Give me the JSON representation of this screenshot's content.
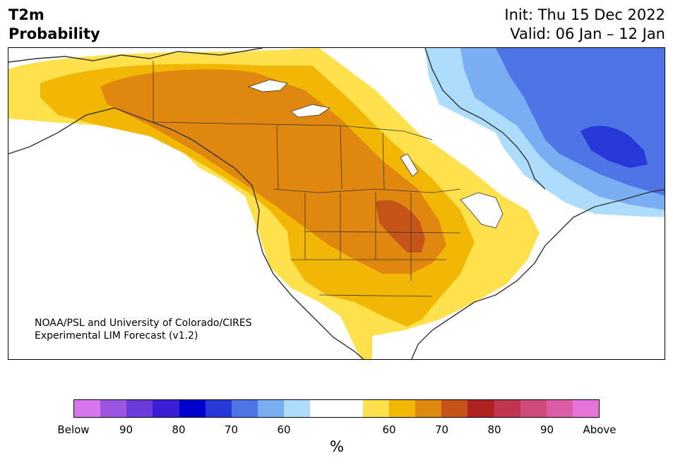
{
  "header": {
    "title_line1": "T2m",
    "title_line2": "Probability",
    "init_text": "Init: Thu 15 Dec 2022",
    "valid_text": "Valid: 06 Jan – 12 Jan"
  },
  "credit": {
    "line1": "NOAA/PSL and University of Colorado/CIRES",
    "line2": "Experimental LIM Forecast (v1.2)"
  },
  "colorbar": {
    "unit": "%",
    "colors": [
      "#d675ec",
      "#9b55e2",
      "#6b3adb",
      "#3a1ed5",
      "#0000cc",
      "#2638d8",
      "#4e74e6",
      "#79aef2",
      "#aedcfd",
      "#ffffff",
      "#ffffff",
      "#ffe14d",
      "#f2b705",
      "#df870e",
      "#c65419",
      "#b02222",
      "#c23550",
      "#cf4b7c",
      "#dc5da6",
      "#e673d8"
    ],
    "ticks": [
      {
        "label": "Below",
        "index": 0
      },
      {
        "label": "90",
        "index": 2
      },
      {
        "label": "80",
        "index": 4
      },
      {
        "label": "70",
        "index": 6
      },
      {
        "label": "60",
        "index": 8
      },
      {
        "label": "60",
        "index": 12
      },
      {
        "label": "70",
        "index": 14
      },
      {
        "label": "80",
        "index": 16
      },
      {
        "label": "90",
        "index": 18
      },
      {
        "label": "Above",
        "index": 20
      }
    ]
  },
  "map": {
    "region": "North America",
    "variable": "2 m temperature tercile probability",
    "colors": {
      "above_60": "#ffe14d",
      "above_65": "#f2b705",
      "above_70": "#df870e",
      "above_75": "#c65419",
      "below_60": "#aedcfd",
      "below_65": "#79aef2",
      "below_70": "#4e74e6",
      "below_75": "#2638d8",
      "coast": "#333333"
    }
  }
}
